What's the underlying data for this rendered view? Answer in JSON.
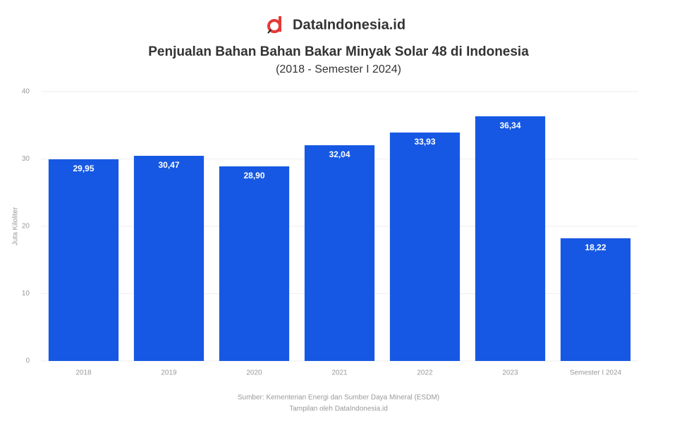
{
  "brand": "DataIndonesia.id",
  "chart_data": {
    "type": "bar",
    "title": "Penjualan Bahan Bahan Bakar Minyak Solar 48 di Indonesia",
    "subtitle": "(2018 - Semester I 2024)",
    "y_label": "Juta Kiloliter",
    "source": "Sumber: Kementerian Energi dan Sumber Daya Mineral (ESDM)",
    "source_note": "Tampilan oleh DataIndonesia.id",
    "categories": [
      "2018",
      "2019",
      "2020",
      "2021",
      "2022",
      "2023",
      "Semester I 2024"
    ],
    "values": [
      29.95,
      30.47,
      28.9,
      32.04,
      33.93,
      36.34,
      18.22
    ],
    "value_labels": [
      "29,95",
      "30,47",
      "28,90",
      "32,04",
      "33,93",
      "36,34",
      "18,22"
    ],
    "color": "#1658e3",
    "ylim": [
      0,
      40
    ],
    "yticks": [
      0,
      10,
      20,
      30,
      40
    ],
    "grid": true
  }
}
